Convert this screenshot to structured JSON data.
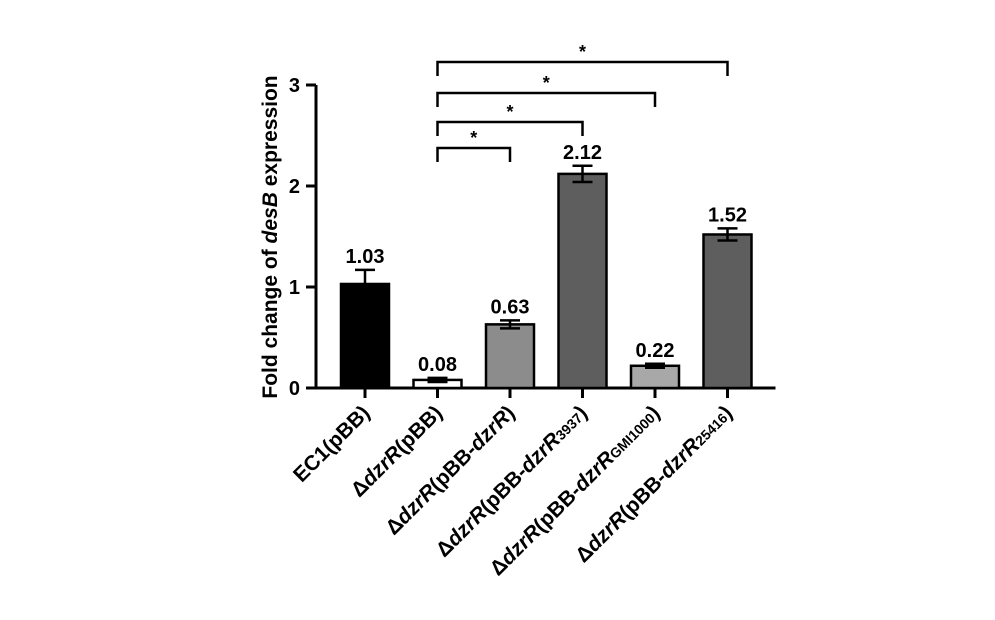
{
  "chart_data": {
    "type": "bar",
    "ylabel": {
      "prefix": "Fold change of ",
      "italic": "desB",
      "suffix": " expression"
    },
    "ylim": [
      0,
      3
    ],
    "yticks": [
      "0",
      "1",
      "2",
      "3"
    ],
    "categories": [
      {
        "parts": [
          {
            "t": "EC1(pBB)"
          }
        ]
      },
      {
        "parts": [
          {
            "t": "Δ"
          },
          {
            "t": "dzrR",
            "i": true
          },
          {
            "t": "(pBB)"
          }
        ]
      },
      {
        "parts": [
          {
            "t": "Δ"
          },
          {
            "t": "dzrR",
            "i": true
          },
          {
            "t": "(pBB-"
          },
          {
            "t": "dzrR",
            "i": true
          },
          {
            "t": ")"
          }
        ]
      },
      {
        "parts": [
          {
            "t": "Δ"
          },
          {
            "t": "dzrR",
            "i": true
          },
          {
            "t": "(pBB-"
          },
          {
            "t": "dzrR",
            "i": true
          },
          {
            "t": "3937",
            "sub": true
          },
          {
            "t": ")"
          }
        ]
      },
      {
        "parts": [
          {
            "t": "Δ"
          },
          {
            "t": "dzrR",
            "i": true
          },
          {
            "t": "(pBB-"
          },
          {
            "t": "dzrR",
            "i": true
          },
          {
            "t": "GMI1000",
            "sub": true
          },
          {
            "t": ")"
          }
        ]
      },
      {
        "parts": [
          {
            "t": "Δ"
          },
          {
            "t": "dzrR",
            "i": true
          },
          {
            "t": "(pBB-"
          },
          {
            "t": "dzrR",
            "i": true
          },
          {
            "t": "25416",
            "sub": true
          },
          {
            "t": ")"
          }
        ]
      }
    ],
    "values": [
      1.03,
      0.08,
      0.63,
      2.12,
      0.22,
      1.52
    ],
    "value_labels": [
      "1.03",
      "0.08",
      "0.63",
      "2.12",
      "0.22",
      "1.52"
    ],
    "errors": [
      0.14,
      0.02,
      0.04,
      0.08,
      0.02,
      0.06
    ],
    "bar_colors": [
      "#000000",
      "#ffffff",
      "#8c8c8c",
      "#5e5e5e",
      "#a8a8a8",
      "#5e5e5e"
    ],
    "significance": [
      {
        "from": 1,
        "to": 2,
        "label": "*"
      },
      {
        "from": 1,
        "to": 3,
        "label": "*"
      },
      {
        "from": 1,
        "to": 4,
        "label": "*"
      },
      {
        "from": 1,
        "to": 5,
        "label": "*"
      }
    ],
    "grid": false,
    "legend": "none"
  }
}
